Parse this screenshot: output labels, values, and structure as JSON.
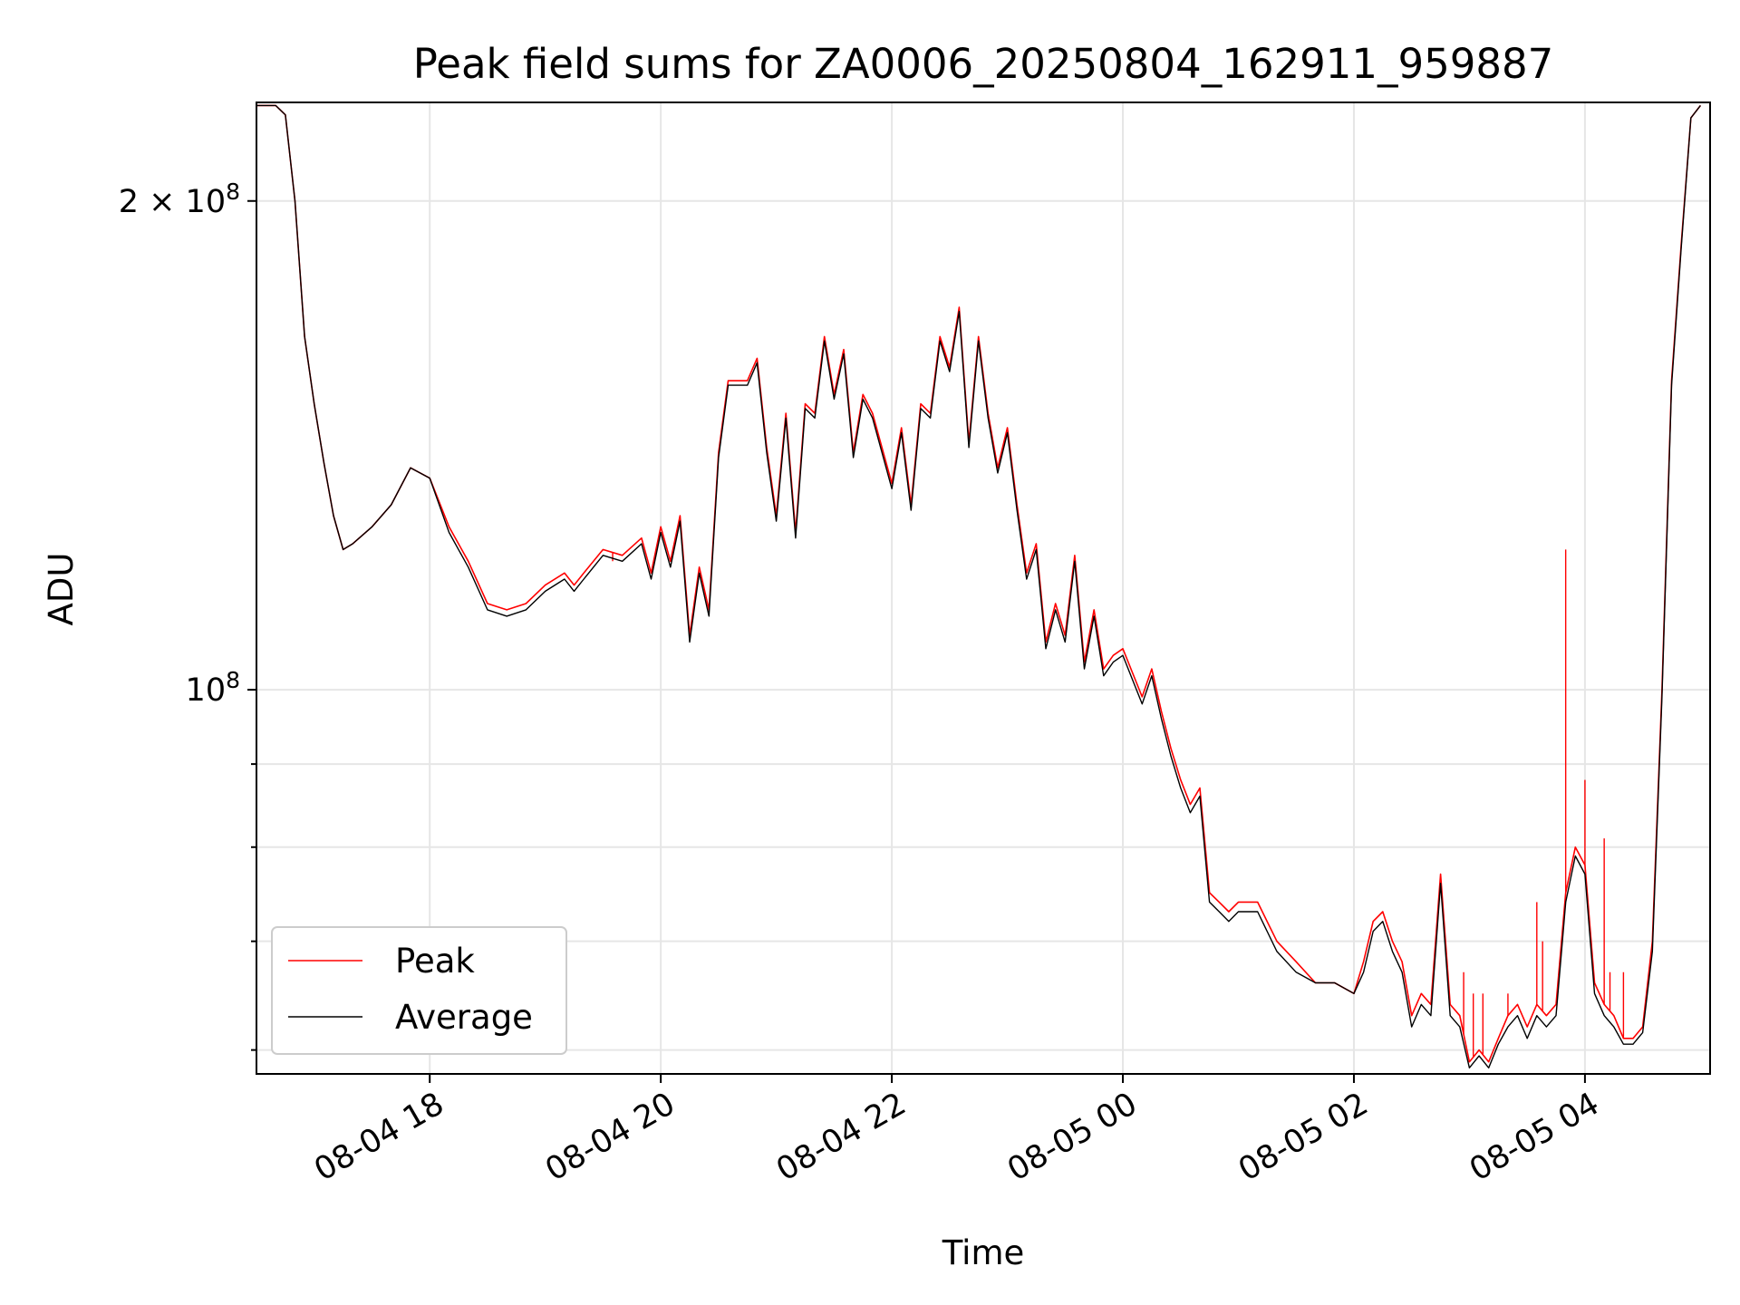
{
  "chart_data": {
    "type": "line",
    "title": "Peak field sums for ZA0006_20250804_162911_959887",
    "xlabel": "Time",
    "ylabel": "ADU",
    "y_scale": "log",
    "grid": true,
    "legend_position": "lower-left",
    "xlim": [
      "2025-08-04 16:30",
      "2025-08-05 05:05"
    ],
    "ylim": [
      58000000,
      230000000
    ],
    "x_ticks": [
      {
        "value": "2025-08-04 18:00",
        "label": "08-04 18"
      },
      {
        "value": "2025-08-04 20:00",
        "label": "08-04 20"
      },
      {
        "value": "2025-08-04 22:00",
        "label": "08-04 22"
      },
      {
        "value": "2025-08-05 00:00",
        "label": "08-05 00"
      },
      {
        "value": "2025-08-05 02:00",
        "label": "08-05 02"
      },
      {
        "value": "2025-08-05 04:00",
        "label": "08-05 04"
      }
    ],
    "y_major_ticks": [
      {
        "value": 100000000,
        "label_base": "10",
        "label_exp": "8",
        "label_coef": ""
      },
      {
        "value": 200000000,
        "label_base": "10",
        "label_exp": "8",
        "label_coef": "2 × "
      }
    ],
    "y_minor_ticks": [
      60000000,
      70000000,
      80000000,
      90000000
    ],
    "series": [
      {
        "name": "Peak",
        "color": "#ff0000",
        "x": [
          "2025-08-04 16:30",
          "2025-08-04 16:40",
          "2025-08-04 16:45",
          "2025-08-04 16:50",
          "2025-08-04 16:55",
          "2025-08-04 17:00",
          "2025-08-04 17:05",
          "2025-08-04 17:10",
          "2025-08-04 17:15",
          "2025-08-04 17:20",
          "2025-08-04 17:30",
          "2025-08-04 17:40",
          "2025-08-04 17:50",
          "2025-08-04 18:00",
          "2025-08-04 18:10",
          "2025-08-04 18:20",
          "2025-08-04 18:30",
          "2025-08-04 18:40",
          "2025-08-04 18:50",
          "2025-08-04 19:00",
          "2025-08-04 19:10",
          "2025-08-04 19:15",
          "2025-08-04 19:20",
          "2025-08-04 19:30",
          "2025-08-04 19:40",
          "2025-08-04 19:50",
          "2025-08-04 19:55",
          "2025-08-04 20:00",
          "2025-08-04 20:05",
          "2025-08-04 20:10",
          "2025-08-04 20:15",
          "2025-08-04 20:20",
          "2025-08-04 20:25",
          "2025-08-04 20:30",
          "2025-08-04 20:35",
          "2025-08-04 20:45",
          "2025-08-04 20:50",
          "2025-08-04 20:55",
          "2025-08-04 21:00",
          "2025-08-04 21:05",
          "2025-08-04 21:10",
          "2025-08-04 21:15",
          "2025-08-04 21:20",
          "2025-08-04 21:25",
          "2025-08-04 21:30",
          "2025-08-04 21:35",
          "2025-08-04 21:40",
          "2025-08-04 21:45",
          "2025-08-04 21:50",
          "2025-08-04 22:00",
          "2025-08-04 22:05",
          "2025-08-04 22:10",
          "2025-08-04 22:15",
          "2025-08-04 22:20",
          "2025-08-04 22:25",
          "2025-08-04 22:30",
          "2025-08-04 22:35",
          "2025-08-04 22:40",
          "2025-08-04 22:45",
          "2025-08-04 22:50",
          "2025-08-04 22:55",
          "2025-08-04 23:00",
          "2025-08-04 23:05",
          "2025-08-04 23:10",
          "2025-08-04 23:15",
          "2025-08-04 23:20",
          "2025-08-04 23:25",
          "2025-08-04 23:30",
          "2025-08-04 23:35",
          "2025-08-04 23:40",
          "2025-08-04 23:45",
          "2025-08-04 23:50",
          "2025-08-04 23:55",
          "2025-08-05 00:00",
          "2025-08-05 00:10",
          "2025-08-05 00:15",
          "2025-08-05 00:20",
          "2025-08-05 00:25",
          "2025-08-05 00:30",
          "2025-08-05 00:35",
          "2025-08-05 00:40",
          "2025-08-05 00:45",
          "2025-08-05 00:50",
          "2025-08-05 00:55",
          "2025-08-05 01:00",
          "2025-08-05 01:10",
          "2025-08-05 01:20",
          "2025-08-05 01:30",
          "2025-08-05 01:40",
          "2025-08-05 01:50",
          "2025-08-05 02:00",
          "2025-08-05 02:05",
          "2025-08-05 02:10",
          "2025-08-05 02:15",
          "2025-08-05 02:20",
          "2025-08-05 02:25",
          "2025-08-05 02:30",
          "2025-08-05 02:35",
          "2025-08-05 02:40",
          "2025-08-05 02:45",
          "2025-08-05 02:50",
          "2025-08-05 02:55",
          "2025-08-05 03:00",
          "2025-08-05 03:05",
          "2025-08-05 03:10",
          "2025-08-05 03:15",
          "2025-08-05 03:20",
          "2025-08-05 03:25",
          "2025-08-05 03:30",
          "2025-08-05 03:35",
          "2025-08-05 03:40",
          "2025-08-05 03:45",
          "2025-08-05 03:50",
          "2025-08-05 03:55",
          "2025-08-05 04:00",
          "2025-08-05 04:05",
          "2025-08-05 04:10",
          "2025-08-05 04:15",
          "2025-08-05 04:20",
          "2025-08-05 04:25",
          "2025-08-05 04:30",
          "2025-08-05 04:35",
          "2025-08-05 04:40",
          "2025-08-05 04:45",
          "2025-08-05 04:50",
          "2025-08-05 04:55",
          "2025-08-05 05:00"
        ],
        "values": [
          229000000,
          229000000,
          226000000,
          200000000,
          165000000,
          150000000,
          138000000,
          128000000,
          122000000,
          123000000,
          126000000,
          130000000,
          137000000,
          135000000,
          126000000,
          120000000,
          113000000,
          112000000,
          113000000,
          116000000,
          118000000,
          116000000,
          118000000,
          122000000,
          121000000,
          124000000,
          118000000,
          126000000,
          120000000,
          128000000,
          108000000,
          119000000,
          112000000,
          140000000,
          155000000,
          155000000,
          160000000,
          141000000,
          128000000,
          148000000,
          125000000,
          150000000,
          148000000,
          165000000,
          152000000,
          162000000,
          140000000,
          152000000,
          148000000,
          134000000,
          145000000,
          130000000,
          150000000,
          148000000,
          165000000,
          158000000,
          172000000,
          142000000,
          165000000,
          148000000,
          137000000,
          145000000,
          130000000,
          118000000,
          123000000,
          107000000,
          113000000,
          108000000,
          121000000,
          104000000,
          112000000,
          103000000,
          105000000,
          106000000,
          99000000,
          103000000,
          97000000,
          92000000,
          88000000,
          85000000,
          87000000,
          75000000,
          74000000,
          73000000,
          74000000,
          74000000,
          70000000,
          68000000,
          66000000,
          66000000,
          65000000,
          68000000,
          72000000,
          73000000,
          70000000,
          68000000,
          63000000,
          65000000,
          64000000,
          77000000,
          64000000,
          63000000,
          59000000,
          60000000,
          59000000,
          61000000,
          63000000,
          64000000,
          62000000,
          64000000,
          63000000,
          64000000,
          75000000,
          80000000,
          78000000,
          66000000,
          64000000,
          63000000,
          61000000,
          61000000,
          62000000,
          70000000,
          100000000,
          155000000,
          188000000,
          225000000,
          229000000
        ],
        "spikes": [
          {
            "x": "2025-08-04 19:35",
            "value": 120000000
          },
          {
            "x": "2025-08-05 02:57",
            "value": 67000000
          },
          {
            "x": "2025-08-05 03:02",
            "value": 65000000
          },
          {
            "x": "2025-08-05 03:07",
            "value": 65000000
          },
          {
            "x": "2025-08-05 03:20",
            "value": 65000000
          },
          {
            "x": "2025-08-05 03:35",
            "value": 74000000
          },
          {
            "x": "2025-08-05 03:38",
            "value": 70000000
          },
          {
            "x": "2025-08-05 03:50",
            "value": 122000000
          },
          {
            "x": "2025-08-05 04:00",
            "value": 88000000
          },
          {
            "x": "2025-08-05 04:10",
            "value": 81000000
          },
          {
            "x": "2025-08-05 04:13",
            "value": 67000000
          },
          {
            "x": "2025-08-05 04:20",
            "value": 67000000
          }
        ]
      },
      {
        "name": "Average",
        "color": "#000000",
        "x": [
          "2025-08-04 16:30",
          "2025-08-04 16:40",
          "2025-08-04 16:45",
          "2025-08-04 16:50",
          "2025-08-04 16:55",
          "2025-08-04 17:00",
          "2025-08-04 17:05",
          "2025-08-04 17:10",
          "2025-08-04 17:15",
          "2025-08-04 17:20",
          "2025-08-04 17:30",
          "2025-08-04 17:40",
          "2025-08-04 17:50",
          "2025-08-04 18:00",
          "2025-08-04 18:10",
          "2025-08-04 18:20",
          "2025-08-04 18:30",
          "2025-08-04 18:40",
          "2025-08-04 18:50",
          "2025-08-04 19:00",
          "2025-08-04 19:10",
          "2025-08-04 19:15",
          "2025-08-04 19:20",
          "2025-08-04 19:30",
          "2025-08-04 19:40",
          "2025-08-04 19:50",
          "2025-08-04 19:55",
          "2025-08-04 20:00",
          "2025-08-04 20:05",
          "2025-08-04 20:10",
          "2025-08-04 20:15",
          "2025-08-04 20:20",
          "2025-08-04 20:25",
          "2025-08-04 20:30",
          "2025-08-04 20:35",
          "2025-08-04 20:45",
          "2025-08-04 20:50",
          "2025-08-04 20:55",
          "2025-08-04 21:00",
          "2025-08-04 21:05",
          "2025-08-04 21:10",
          "2025-08-04 21:15",
          "2025-08-04 21:20",
          "2025-08-04 21:25",
          "2025-08-04 21:30",
          "2025-08-04 21:35",
          "2025-08-04 21:40",
          "2025-08-04 21:45",
          "2025-08-04 21:50",
          "2025-08-04 22:00",
          "2025-08-04 22:05",
          "2025-08-04 22:10",
          "2025-08-04 22:15",
          "2025-08-04 22:20",
          "2025-08-04 22:25",
          "2025-08-04 22:30",
          "2025-08-04 22:35",
          "2025-08-04 22:40",
          "2025-08-04 22:45",
          "2025-08-04 22:50",
          "2025-08-04 22:55",
          "2025-08-04 23:00",
          "2025-08-04 23:05",
          "2025-08-04 23:10",
          "2025-08-04 23:15",
          "2025-08-04 23:20",
          "2025-08-04 23:25",
          "2025-08-04 23:30",
          "2025-08-04 23:35",
          "2025-08-04 23:40",
          "2025-08-04 23:45",
          "2025-08-04 23:50",
          "2025-08-04 23:55",
          "2025-08-05 00:00",
          "2025-08-05 00:10",
          "2025-08-05 00:15",
          "2025-08-05 00:20",
          "2025-08-05 00:25",
          "2025-08-05 00:30",
          "2025-08-05 00:35",
          "2025-08-05 00:40",
          "2025-08-05 00:45",
          "2025-08-05 00:50",
          "2025-08-05 00:55",
          "2025-08-05 01:00",
          "2025-08-05 01:10",
          "2025-08-05 01:20",
          "2025-08-05 01:30",
          "2025-08-05 01:40",
          "2025-08-05 01:50",
          "2025-08-05 02:00",
          "2025-08-05 02:05",
          "2025-08-05 02:10",
          "2025-08-05 02:15",
          "2025-08-05 02:20",
          "2025-08-05 02:25",
          "2025-08-05 02:30",
          "2025-08-05 02:35",
          "2025-08-05 02:40",
          "2025-08-05 02:45",
          "2025-08-05 02:50",
          "2025-08-05 02:55",
          "2025-08-05 03:00",
          "2025-08-05 03:05",
          "2025-08-05 03:10",
          "2025-08-05 03:15",
          "2025-08-05 03:20",
          "2025-08-05 03:25",
          "2025-08-05 03:30",
          "2025-08-05 03:35",
          "2025-08-05 03:40",
          "2025-08-05 03:45",
          "2025-08-05 03:50",
          "2025-08-05 03:55",
          "2025-08-05 04:00",
          "2025-08-05 04:05",
          "2025-08-05 04:10",
          "2025-08-05 04:15",
          "2025-08-05 04:20",
          "2025-08-05 04:25",
          "2025-08-05 04:30",
          "2025-08-05 04:35",
          "2025-08-05 04:40",
          "2025-08-05 04:45",
          "2025-08-05 04:50",
          "2025-08-05 04:55",
          "2025-08-05 05:00"
        ],
        "values": [
          229000000,
          229000000,
          226000000,
          200000000,
          165000000,
          150000000,
          138000000,
          128000000,
          122000000,
          123000000,
          126000000,
          130000000,
          137000000,
          135000000,
          125000000,
          119000000,
          112000000,
          111000000,
          112000000,
          115000000,
          117000000,
          115000000,
          117000000,
          121000000,
          120000000,
          123000000,
          117000000,
          125000000,
          119000000,
          127000000,
          107000000,
          118000000,
          111000000,
          139000000,
          154000000,
          154000000,
          159000000,
          140000000,
          127000000,
          147000000,
          124000000,
          149000000,
          147000000,
          164000000,
          151000000,
          161000000,
          139000000,
          151000000,
          147000000,
          133000000,
          144000000,
          129000000,
          149000000,
          147000000,
          164000000,
          157000000,
          171000000,
          141000000,
          164000000,
          147000000,
          136000000,
          144000000,
          129000000,
          117000000,
          122000000,
          106000000,
          112000000,
          107000000,
          120000000,
          103000000,
          111000000,
          102000000,
          104000000,
          105000000,
          98000000,
          102000000,
          96000000,
          91000000,
          87000000,
          84000000,
          86000000,
          74000000,
          73000000,
          72000000,
          73000000,
          73000000,
          69000000,
          67000000,
          66000000,
          66000000,
          65000000,
          67000000,
          71000000,
          72000000,
          69000000,
          67000000,
          62000000,
          64000000,
          63000000,
          76000000,
          63000000,
          62000000,
          58500000,
          59500000,
          58500000,
          60500000,
          62000000,
          63000000,
          61000000,
          63000000,
          62000000,
          63000000,
          74000000,
          79000000,
          77000000,
          65000000,
          63000000,
          62000000,
          60500000,
          60500000,
          61500000,
          69000000,
          99000000,
          154000000,
          187000000,
          225000000,
          229000000
        ]
      }
    ]
  }
}
